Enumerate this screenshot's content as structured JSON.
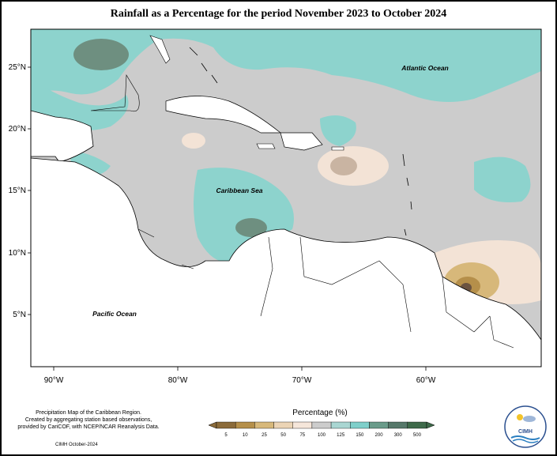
{
  "title": "Rainfall as a Percentage for the period November 2023 to October 2024",
  "map": {
    "lat_labels": [
      "25°N",
      "20°N",
      "15°N",
      "10°N",
      "5°N"
    ],
    "lon_labels": [
      "90°W",
      "80°W",
      "70°W",
      "60°W"
    ],
    "ocean_labels": {
      "atlantic": "Atlantic Ocean",
      "caribbean": "Caribbean Sea",
      "pacific": "Pacific Ocean"
    }
  },
  "legend": {
    "title": "Percentage (%)",
    "ticks": [
      "5",
      "10",
      "25",
      "50",
      "75",
      "100",
      "125",
      "150",
      "200",
      "300",
      "500"
    ],
    "colors": [
      "#8b6b3a",
      "#b58f4a",
      "#d7b87a",
      "#ebd4b5",
      "#f5e6da",
      "#cccccc",
      "#a9d6d2",
      "#7fcfca",
      "#6a9b8a",
      "#56786a",
      "#3e6a4a"
    ]
  },
  "footer": {
    "lines": [
      "Precipitation Map of the Caribbean Region.",
      "Created by aggregating station based observations,",
      "provided by CariCOF, with NCEP/NCAR Reanalysis Data."
    ],
    "date": "CIMH October-2024"
  },
  "logo": {
    "text": "CIMH"
  }
}
